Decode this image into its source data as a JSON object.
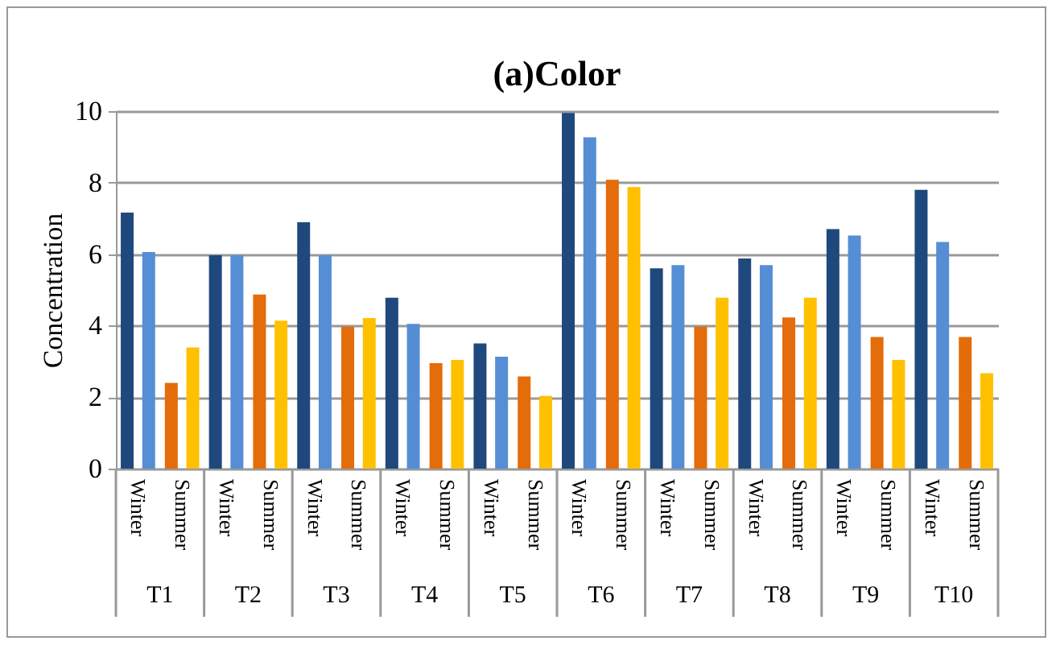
{
  "chart_data": {
    "type": "bar",
    "title": "(a)Color",
    "ylabel": "Concentration",
    "categories": [
      "Winter",
      "Summer",
      "Winter",
      "Summer",
      "Winter",
      "Summer",
      "Winter",
      "Summer",
      "Winter",
      "Summer",
      "Winter",
      "Summer",
      "Winter",
      "Summer",
      "Winter",
      "Summer",
      "Winter",
      "Summer",
      "Winter",
      "Summer"
    ],
    "annotations": [
      "T1",
      "T2",
      "T3",
      "T4",
      "T5",
      "T6",
      "T7",
      "T8",
      "T9",
      "T10"
    ],
    "series": [
      {
        "color": "#1f497d",
        "values": [
          7.16,
          null,
          5.97,
          null,
          6.89,
          null,
          4.78,
          null,
          3.5,
          null,
          9.95,
          null,
          5.6,
          null,
          5.88,
          null,
          6.7,
          null,
          7.8,
          null
        ]
      },
      {
        "color": "#558ed5",
        "values": [
          6.06,
          null,
          5.97,
          null,
          5.97,
          null,
          4.05,
          null,
          3.13,
          null,
          9.27,
          null,
          5.69,
          null,
          5.69,
          null,
          6.52,
          null,
          6.34,
          null
        ]
      },
      {
        "color": "#e46c0a",
        "values": [
          null,
          2.4,
          null,
          4.87,
          null,
          3.97,
          null,
          2.95,
          null,
          2.58,
          null,
          8.08,
          null,
          3.97,
          null,
          4.23,
          null,
          3.68,
          null,
          3.68
        ]
      },
      {
        "color": "#ffc000",
        "values": [
          null,
          3.39,
          null,
          4.14,
          null,
          4.21,
          null,
          3.04,
          null,
          2.03,
          null,
          7.88,
          null,
          4.78,
          null,
          4.78,
          null,
          3.04,
          null,
          2.67
        ]
      }
    ],
    "ylim": [
      0,
      10
    ],
    "yticks": [
      0,
      2,
      4,
      6,
      8,
      10
    ],
    "grid": "y"
  }
}
